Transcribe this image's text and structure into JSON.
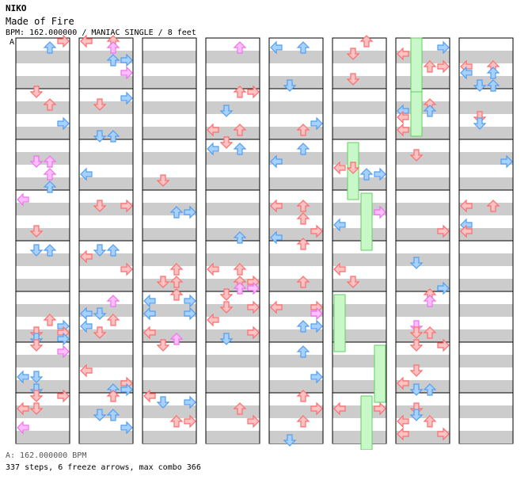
{
  "header": {
    "artist": "NIKO",
    "title": "Made of Fire",
    "info": "BPM: 162.000000 / MANIAC SINGLE / 8 feet",
    "marker": "A"
  },
  "footer": {
    "bpm": "A: 162.000000 BPM",
    "stats": "337 steps, 6 freeze arrows, max combo 366"
  },
  "colors": {
    "quarter": "#ff6b6b",
    "eighth": "#4f9ff2",
    "sixteenth": "#ee6fee",
    "freeze": "#5fd15f",
    "band": "#cccccc"
  },
  "chart": {
    "columns": 8,
    "measures_per_column": 8,
    "lanes": [
      "left",
      "down",
      "up",
      "right"
    ],
    "note_types": [
      "quarter",
      "eighth",
      "sixteenth"
    ],
    "seed": 7
  }
}
